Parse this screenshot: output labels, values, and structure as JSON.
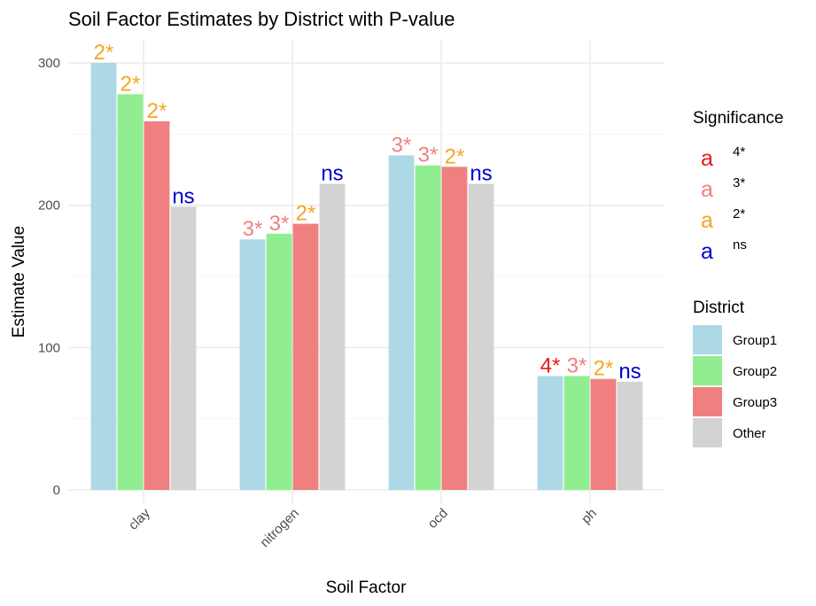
{
  "chart_data": {
    "type": "bar",
    "title": "Soil Factor Estimates by District with P-value",
    "xlabel": "Soil Factor",
    "ylabel": "Estimate Value",
    "categories": [
      "clay",
      "nitrogen",
      "ocd",
      "ph"
    ],
    "ylim": [
      0,
      310
    ],
    "yticks": [
      0,
      100,
      200,
      300
    ],
    "grid": true,
    "series": [
      {
        "name": "Group1",
        "color": "#add8e6",
        "values": [
          300,
          176,
          235,
          80
        ],
        "labels": [
          "2*",
          "3*",
          "3*",
          "4*"
        ]
      },
      {
        "name": "Group2",
        "color": "#90ee90",
        "values": [
          278,
          180,
          228,
          80
        ],
        "labels": [
          "2*",
          "3*",
          "3*",
          "3*"
        ]
      },
      {
        "name": "Group3",
        "color": "#f08080",
        "values": [
          259,
          187,
          227,
          78
        ],
        "labels": [
          "2*",
          "2*",
          "2*",
          "2*"
        ]
      },
      {
        "name": "Other",
        "color": "#d3d3d3",
        "values": [
          199,
          215,
          215,
          76
        ],
        "labels": [
          "ns",
          "ns",
          "ns",
          "ns"
        ]
      }
    ],
    "district_legend": {
      "title": "District",
      "placement": "right"
    },
    "significance_legend": {
      "title": "Significance",
      "placement": "right",
      "glyph": "a",
      "levels": [
        {
          "key": "4*",
          "color": "#e41a1c"
        },
        {
          "key": "3*",
          "color": "#f08080"
        },
        {
          "key": "2*",
          "color": "#f5a623"
        },
        {
          "key": "ns",
          "color": "#0000cc"
        }
      ]
    }
  }
}
